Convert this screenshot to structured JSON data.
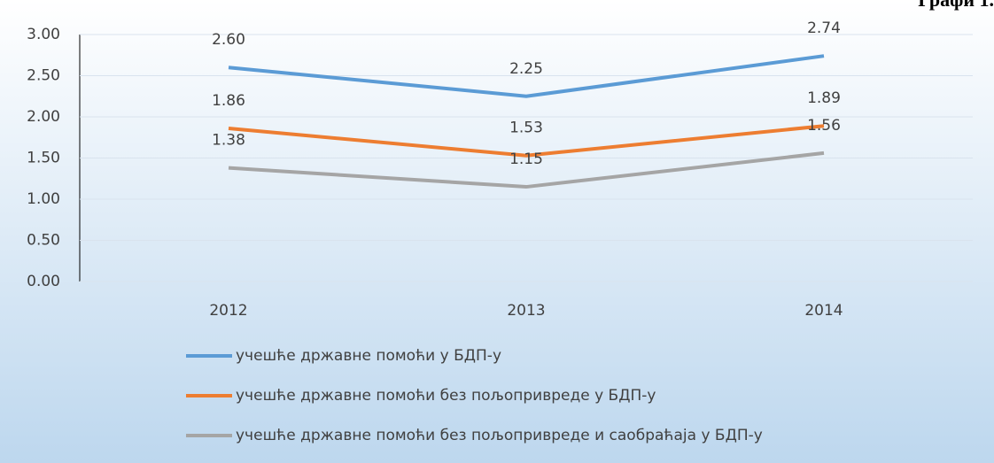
{
  "chart_data": {
    "type": "line",
    "title": "Графи 1.",
    "categories": [
      "2012",
      "2013",
      "2014"
    ],
    "series": [
      {
        "name": "учешће државне помоћи у БДП-у",
        "color": "#5b9bd5",
        "values": [
          2.6,
          2.25,
          2.74
        ],
        "value_labels": [
          "2.60",
          "2.25",
          "2.74"
        ]
      },
      {
        "name": "учешће државне помоћи без пољопривреде у БДП-у",
        "color": "#ed7d31",
        "values": [
          1.86,
          1.53,
          1.89
        ],
        "value_labels": [
          "1.86",
          "1.53",
          "1.89"
        ]
      },
      {
        "name": "учешће државне помоћи без пољопривреде и саобраћаја у БДП-у",
        "color": "#a5a5a5",
        "values": [
          1.38,
          1.15,
          1.56
        ],
        "value_labels": [
          "1.38",
          "1.15",
          "1.56"
        ]
      }
    ],
    "ylim": [
      0,
      3
    ],
    "yticks": [
      {
        "value": 0,
        "label": "0.00"
      },
      {
        "value": 0.5,
        "label": "0.50"
      },
      {
        "value": 1,
        "label": "1.00"
      },
      {
        "value": 1.5,
        "label": "1.50"
      },
      {
        "value": 2,
        "label": "2.00"
      },
      {
        "value": 2.5,
        "label": "2.50"
      },
      {
        "value": 3,
        "label": "3.00"
      }
    ],
    "grid": true,
    "legend": "bottom"
  }
}
